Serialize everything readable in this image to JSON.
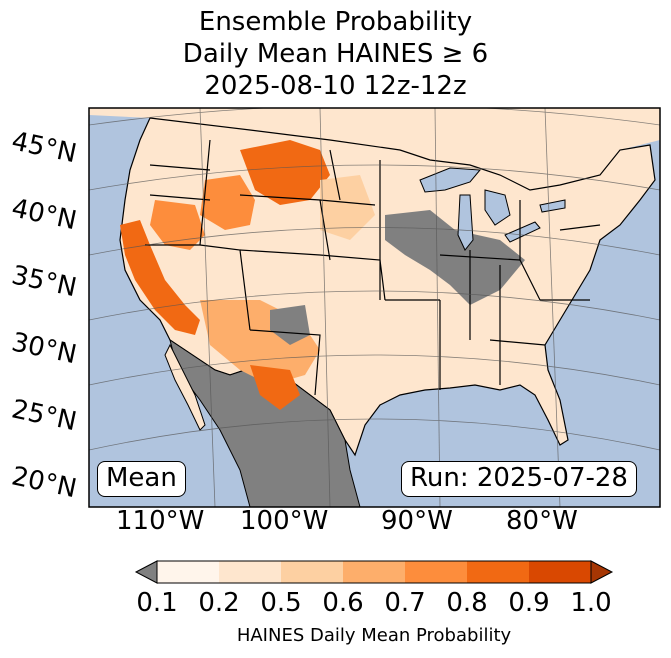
{
  "title": {
    "line1": "Ensemble Probability",
    "line2": "Daily Mean HAINES ≥ 6",
    "line3": "2025-08-10 12z-12z"
  },
  "map": {
    "latitude_labels": [
      "45°N",
      "40°N",
      "35°N",
      "30°N",
      "25°N",
      "20°N"
    ],
    "longitude_labels": [
      "110°W",
      "100°W",
      "90°W",
      "80°W"
    ],
    "stat_label": "Mean",
    "run_label": "Run: 2025-07-28",
    "colors": {
      "ocean": "#b0c4de",
      "missing": "#808080",
      "border": "#000000",
      "grid": "#555555"
    }
  },
  "colorbar": {
    "label": "HAINES Daily Mean Probability",
    "ticks": [
      "0.1",
      "0.2",
      "0.5",
      "0.6",
      "0.7",
      "0.8",
      "0.9",
      "1.0"
    ],
    "colors": [
      "#fff5eb",
      "#fee6ce",
      "#fdd0a2",
      "#fdae6b",
      "#fd8d3c",
      "#f16913",
      "#d94801",
      "#a63603"
    ],
    "under_color": "#808080"
  }
}
